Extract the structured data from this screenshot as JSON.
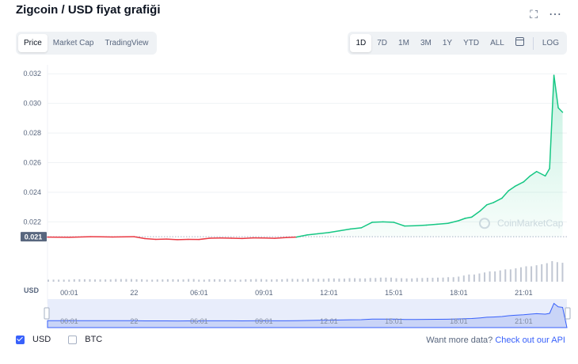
{
  "header": {
    "title": "Zigcoin / USD fiyat grafiği",
    "fullscreen_icon": "expand-icon",
    "more_icon": "more-horizontal-icon"
  },
  "view_tabs": [
    {
      "label": "Price",
      "active": true
    },
    {
      "label": "Market Cap",
      "active": false
    },
    {
      "label": "TradingView",
      "active": false
    }
  ],
  "range_tabs": [
    {
      "label": "1D",
      "active": true
    },
    {
      "label": "7D",
      "active": false
    },
    {
      "label": "1M",
      "active": false
    },
    {
      "label": "3M",
      "active": false
    },
    {
      "label": "1Y",
      "active": false
    },
    {
      "label": "YTD",
      "active": false
    },
    {
      "label": "ALL",
      "active": false
    }
  ],
  "calendar_icon": "calendar-icon",
  "log_label": "LOG",
  "currency_label": "USD",
  "watermark": "CoinMarketCap",
  "colors": {
    "up": "#16c784",
    "down": "#ea3943",
    "accent": "#3861fb",
    "grid": "#eff2f5",
    "volume": "#c1c7d3"
  },
  "chart_data": {
    "type": "line",
    "ylim": [
      0.0186,
      0.0326
    ],
    "yticks": [
      "0.022",
      "0.024",
      "0.026",
      "0.028",
      "0.030",
      "0.032"
    ],
    "ytick_values": [
      0.022,
      0.024,
      0.026,
      0.028,
      0.03,
      0.032
    ],
    "xticks": [
      "00:01",
      "22",
      "06:01",
      "09:01",
      "12:01",
      "15:01",
      "18:01",
      "21:01"
    ],
    "xtick_hours": [
      1,
      4,
      7,
      10,
      13,
      16,
      19,
      22
    ],
    "open_price": 0.021,
    "open_price_label": "0.021",
    "hours": [
      0,
      1,
      2,
      3,
      4,
      4.5,
      5,
      5.5,
      6,
      6.5,
      7,
      7.5,
      8,
      8.5,
      9,
      9.5,
      10,
      10.5,
      11,
      11.5,
      12,
      12.5,
      13,
      13.5,
      14,
      14.5,
      15,
      15.5,
      16,
      16.5,
      17,
      17.5,
      18,
      18.5,
      19,
      19.3,
      19.6,
      20,
      20.3,
      20.6,
      21,
      21.3,
      21.6,
      22,
      22.3,
      22.6,
      23,
      23.2,
      23.4,
      23.6,
      23.8
    ],
    "price": [
      0.02097,
      0.02096,
      0.021,
      0.02098,
      0.021,
      0.02087,
      0.02082,
      0.02084,
      0.0208,
      0.02082,
      0.02081,
      0.0209,
      0.02091,
      0.0209,
      0.02088,
      0.02092,
      0.02091,
      0.02089,
      0.02094,
      0.02097,
      0.02112,
      0.0212,
      0.02128,
      0.0214,
      0.02152,
      0.0216,
      0.02197,
      0.022,
      0.02197,
      0.02172,
      0.02174,
      0.02178,
      0.02184,
      0.0219,
      0.02208,
      0.02224,
      0.02232,
      0.02275,
      0.02315,
      0.0233,
      0.0236,
      0.0241,
      0.0244,
      0.0247,
      0.0251,
      0.0254,
      0.0251,
      0.0256,
      0.0319,
      0.0297,
      0.0294
    ],
    "volume": [
      0.1,
      0.12,
      0.11,
      0.13,
      0.12,
      0.1,
      0.11,
      0.12,
      0.11,
      0.13,
      0.1,
      0.12,
      0.11,
      0.1,
      0.12,
      0.13,
      0.11,
      0.12,
      0.14,
      0.13,
      0.15,
      0.14,
      0.16,
      0.15,
      0.17,
      0.16,
      0.18,
      0.2,
      0.17,
      0.16,
      0.18,
      0.19,
      0.2,
      0.22,
      0.25,
      0.3,
      0.35,
      0.4,
      0.45,
      0.5,
      0.55,
      0.6,
      0.65,
      0.7,
      0.75,
      0.8,
      0.85,
      0.9,
      1.0,
      0.95,
      0.92
    ]
  },
  "legend": [
    {
      "label": "USD",
      "checked": true
    },
    {
      "label": "BTC",
      "checked": false
    }
  ],
  "footer": {
    "prompt": "Want more data?",
    "link": "Check out our API"
  }
}
